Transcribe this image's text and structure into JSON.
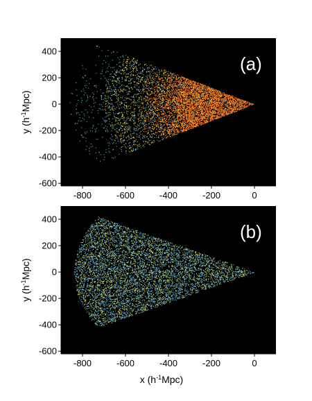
{
  "chart_data": [
    {
      "type": "scatter",
      "panel_label": "(a)",
      "xlim": [
        -900,
        100
      ],
      "ylim": [
        -620,
        500
      ],
      "xticks": [
        -800,
        -600,
        -400,
        -200,
        0
      ],
      "yticks": [
        -600,
        -400,
        -200,
        0,
        200,
        400
      ],
      "xtick_labels": [
        "-800",
        "-600",
        "-400",
        "-200",
        "0"
      ],
      "ytick_labels": [
        "-600",
        "-400",
        "-200",
        "0",
        "200",
        "400"
      ],
      "ylabel_main": "y (h",
      "ylabel_sup": "-1",
      "ylabel_end": "Mpc)",
      "xlabel_main": "",
      "xlabel_sup": "",
      "xlabel_end": "",
      "background": "#000000",
      "series": [
        {
          "color": "#6fb6c8",
          "region": {
            "r_min": 0,
            "r_max": 860,
            "angle_deg": 32
          },
          "density": "sparse"
        },
        {
          "color": "#ff7a1a",
          "region": {
            "r_min": 0,
            "r_max": 560,
            "angle_deg": 32
          },
          "density": "dense"
        },
        {
          "color": "#e8d23a",
          "region": {
            "r_min": 150,
            "r_max": 700,
            "angle_deg": 32
          },
          "density": "filaments"
        }
      ]
    },
    {
      "type": "scatter",
      "panel_label": "(b)",
      "xlim": [
        -900,
        100
      ],
      "ylim": [
        -620,
        500
      ],
      "xticks": [
        -800,
        -600,
        -400,
        -200,
        0
      ],
      "yticks": [
        -600,
        -400,
        -200,
        0,
        200,
        400
      ],
      "xtick_labels": [
        "-800",
        "-600",
        "-400",
        "-200",
        "0"
      ],
      "ytick_labels": [
        "-600",
        "-400",
        "-200",
        "0",
        "200",
        "400"
      ],
      "ylabel_main": "y (h",
      "ylabel_sup": "-1",
      "ylabel_end": "Mpc)",
      "xlabel_main": "x (h",
      "xlabel_sup": "-1",
      "xlabel_end": "Mpc)",
      "background": "#000000",
      "series": [
        {
          "color": "#5fa8c0",
          "region": {
            "r_min": 0,
            "r_max": 840,
            "angle_deg": 30
          },
          "density": "uniform"
        },
        {
          "color": "#e8e040",
          "region": {
            "r_min": 0,
            "r_max": 840,
            "angle_deg": 30
          },
          "density": "filaments"
        }
      ]
    }
  ]
}
